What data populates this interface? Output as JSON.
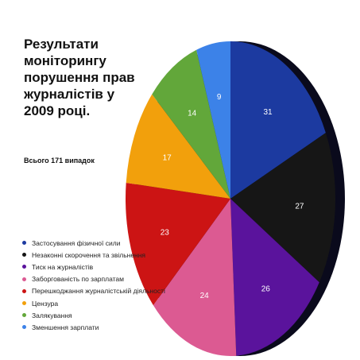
{
  "chart_data": {
    "type": "pie",
    "title": "Результати моніторингу порушення прав журналістів у 2009 році.",
    "total_text": "Всього 171 випадок",
    "legend_position": "bottom-left",
    "categories": [
      "Застосування фізичної сили",
      "Незаконні скорочення та звільнення",
      "Тиск на журналістів",
      "Заборгованість по зарплатам",
      "Перешкоджання журналістській діяльності",
      "Цензура",
      "Залякування",
      "Зменшення зарплати"
    ],
    "values": [
      31,
      27,
      26,
      24,
      23,
      17,
      14,
      9
    ],
    "colors": [
      "#1c3aa0",
      "#161616",
      "#5a139c",
      "#dc5a92",
      "#cc1414",
      "#f2a00c",
      "#62a73a",
      "#3c82e8"
    ]
  }
}
